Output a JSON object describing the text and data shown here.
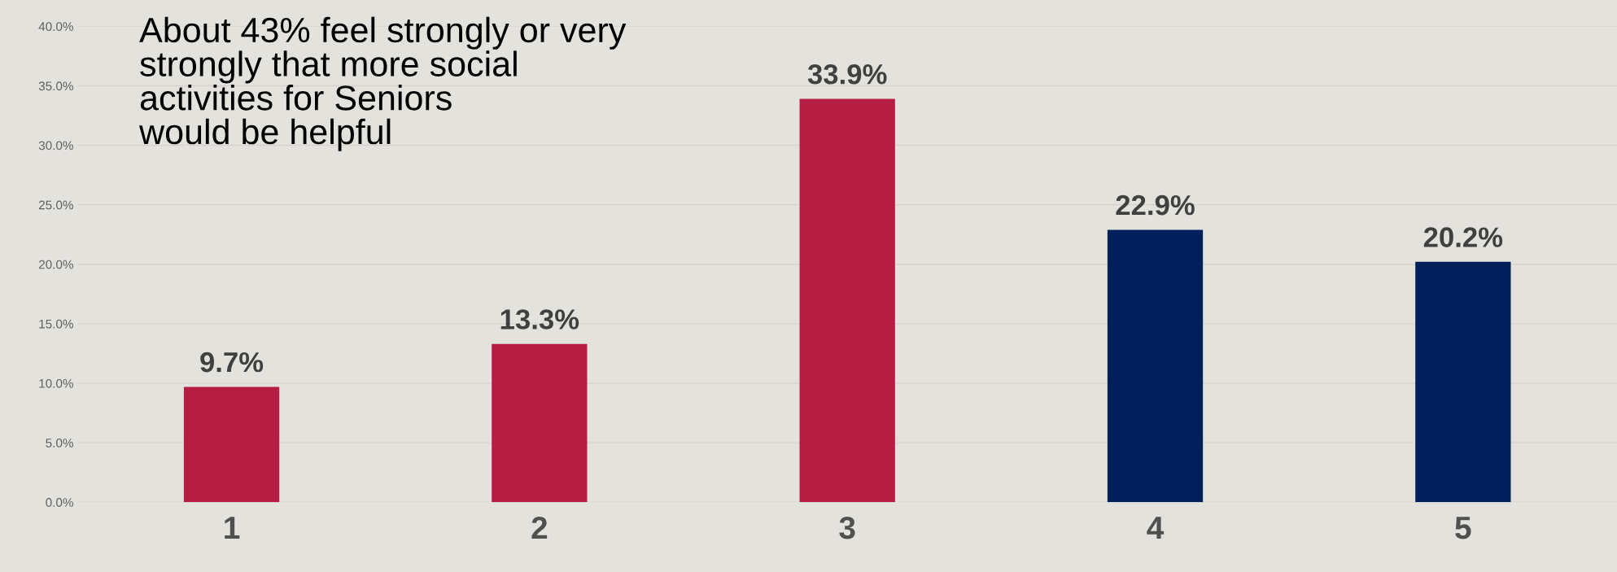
{
  "chart_data": {
    "type": "bar",
    "categories": [
      "1",
      "2",
      "3",
      "4",
      "5"
    ],
    "values": [
      9.7,
      13.3,
      33.9,
      22.9,
      20.2
    ],
    "colors": [
      "#b71c42",
      "#b71c42",
      "#b71c42",
      "#001f5b",
      "#001f5b"
    ],
    "value_labels": [
      "9.7%",
      "13.3%",
      "33.9%",
      "22.9%",
      "20.2%"
    ],
    "ylim": [
      0,
      40
    ],
    "yticks": [
      {
        "value": 0,
        "label": "0.0%"
      },
      {
        "value": 5,
        "label": "5.0%"
      },
      {
        "value": 10,
        "label": "10.0%"
      },
      {
        "value": 15,
        "label": "15.0%"
      },
      {
        "value": 20,
        "label": "20.0%"
      },
      {
        "value": 25,
        "label": "25.0%"
      },
      {
        "value": 30,
        "label": "30.0%"
      },
      {
        "value": 35,
        "label": "35.0%"
      },
      {
        "value": 40,
        "label": "40.0%"
      }
    ],
    "grid": "y",
    "annotations": [
      "About 43% feel strongly or very\nstrongly that more social\nactivities for Seniors\nwould be helpful"
    ]
  }
}
